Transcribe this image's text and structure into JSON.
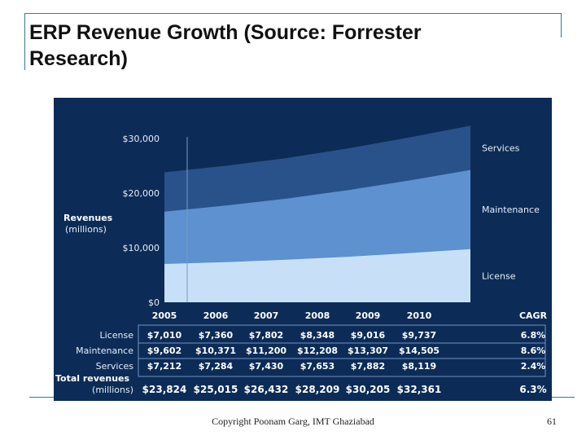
{
  "slide": {
    "title_line1": "ERP Revenue Growth (Source: Forrester",
    "title_line2": "Research)",
    "footer": "Copyright Poonam Garg, IMT Ghaziabad",
    "page_number": "61"
  },
  "colors": {
    "panel": "#0c2c57",
    "services": "#29528a",
    "maintenance": "#5d91cf",
    "license": "#c8e0f7",
    "text": "#e6eef8",
    "accent_line": "#2f7f90"
  },
  "chart_data": {
    "type": "area",
    "stacked": true,
    "ylabel": "Revenues",
    "ylabel_sub": "(millions)",
    "y_ticks": [
      "$0",
      "$10,000",
      "$20,000",
      "$30,000"
    ],
    "y_tick_values": [
      0,
      10000,
      20000,
      30000
    ],
    "ylim": [
      0,
      33000
    ],
    "categories": [
      "2005",
      "2006",
      "2007",
      "2008",
      "2009",
      "2010"
    ],
    "cagr_header": "CAGR",
    "series": [
      {
        "name": "License",
        "values": [
          7010,
          7360,
          7802,
          8348,
          9016,
          9737
        ],
        "labels": [
          "$7,010",
          "$7,360",
          "$7,802",
          "$8,348",
          "$9,016",
          "$9,737"
        ],
        "cagr": "6.8%"
      },
      {
        "name": "Maintenance",
        "values": [
          9602,
          10371,
          11200,
          12208,
          13307,
          14505
        ],
        "labels": [
          "$9,602",
          "$10,371",
          "$11,200",
          "$12,208",
          "$13,307",
          "$14,505"
        ],
        "cagr": "8.6%"
      },
      {
        "name": "Services",
        "values": [
          7212,
          7284,
          7430,
          7653,
          7882,
          8119
        ],
        "labels": [
          "$7,212",
          "$7,284",
          "$7,430",
          "$7,653",
          "$7,882",
          "$8,119"
        ],
        "cagr": "2.4%"
      }
    ],
    "total": {
      "name": "Total revenues",
      "name_sub": "(millions)",
      "values": [
        23824,
        25015,
        26432,
        28209,
        30205,
        32361
      ],
      "labels": [
        "$23,824",
        "$25,015",
        "$26,432",
        "$28,209",
        "$30,205",
        "$32,361"
      ],
      "cagr": "6.3%"
    }
  }
}
